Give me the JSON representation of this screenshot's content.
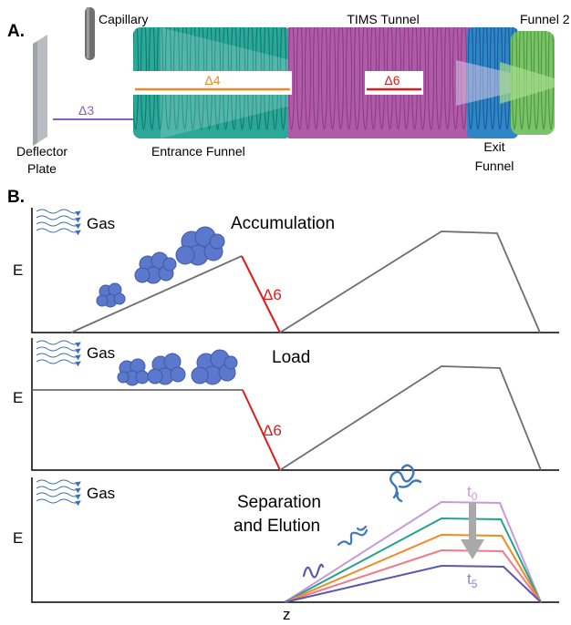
{
  "panel_a": {
    "label": "A.",
    "capillary": "Capillary",
    "tims_tunnel": "TIMS Tunnel",
    "funnel2": "Funnel 2",
    "delta4": "Δ4",
    "delta6": "Δ6",
    "delta3": "Δ3",
    "deflector_line1": "Deflector",
    "deflector_line2": "Plate",
    "entrance_funnel": "Entrance Funnel",
    "exit_line1": "Exit",
    "exit_line2": "Funnel"
  },
  "panel_b": {
    "label": "B.",
    "gas": "Gas",
    "energy_axis": "E",
    "position_axis": "z",
    "accumulation_title": "Accumulation",
    "load_title": "Load",
    "delta6": "Δ6",
    "separation_line1": "Separation",
    "separation_line2": "and Elution",
    "t_start": "t",
    "t_start_sub": "0",
    "t_end": "t",
    "t_end_sub": "5"
  },
  "colors": {
    "entrance_funnel": "#2aa89a",
    "tims_tunnel": "#b05aa8",
    "exit_funnel": "#2e86c8",
    "funnel2": "#7cc46a",
    "delta4_line": "#f08a24",
    "delta6_line": "#e01b1b",
    "delta3_line": "#8a5cc4",
    "profile_gray": "#6e6e6e",
    "ion_blue": "#5b78cc",
    "elution_profiles": [
      "#c89ad8",
      "#22a38e",
      "#f08a24",
      "#f07a8a",
      "#5a57b0"
    ]
  }
}
